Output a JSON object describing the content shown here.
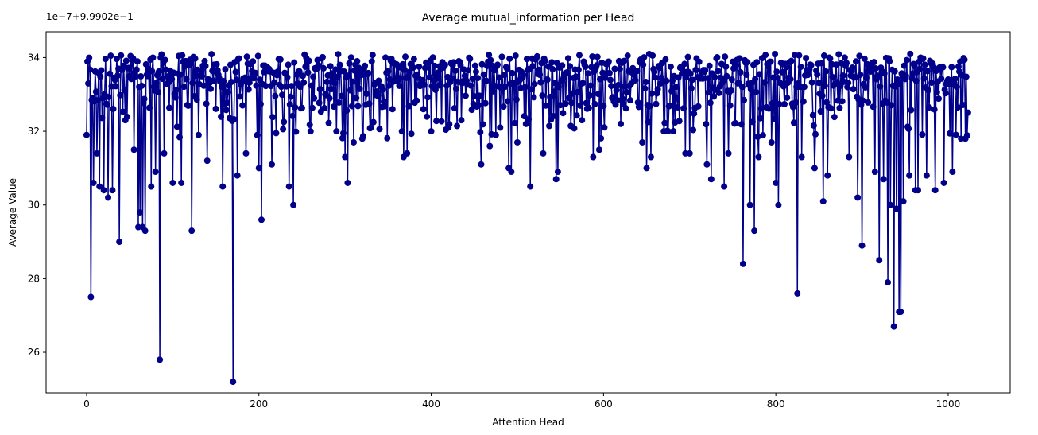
{
  "chart_data": {
    "type": "line",
    "title": "Average mutual_information per Head",
    "xlabel": "Attention Head",
    "ylabel": "Average Value",
    "offset_label": "1e−7+9.9902e−1",
    "xlim": [
      -47,
      1072
    ],
    "ylim": [
      24.9,
      34.7
    ],
    "xticks": [
      0,
      200,
      400,
      600,
      800,
      1000
    ],
    "xtick_labels": [
      "0",
      "200",
      "400",
      "600",
      "800",
      "1000"
    ],
    "yticks": [
      26,
      28,
      30,
      32,
      34
    ],
    "ytick_labels": [
      "26",
      "28",
      "30",
      "32",
      "34"
    ],
    "grid": false,
    "markers": true,
    "series_color": "#00008b",
    "n_points": 1024,
    "baseline": 33.2,
    "upper": 34.1,
    "dips": [
      [
        0,
        31.9
      ],
      [
        2,
        33.3
      ],
      [
        5,
        27.5
      ],
      [
        8,
        30.6
      ],
      [
        12,
        31.4
      ],
      [
        15,
        30.5
      ],
      [
        20,
        30.4
      ],
      [
        25,
        30.2
      ],
      [
        30,
        30.4
      ],
      [
        38,
        29.0
      ],
      [
        45,
        32.3
      ],
      [
        55,
        31.5
      ],
      [
        60,
        29.4
      ],
      [
        62,
        29.8
      ],
      [
        65,
        29.4
      ],
      [
        68,
        29.3
      ],
      [
        75,
        30.5
      ],
      [
        80,
        30.9
      ],
      [
        85,
        25.8
      ],
      [
        90,
        31.4
      ],
      [
        100,
        30.6
      ],
      [
        110,
        30.6
      ],
      [
        122,
        29.3
      ],
      [
        130,
        31.9
      ],
      [
        140,
        31.2
      ],
      [
        158,
        30.5
      ],
      [
        170,
        25.2
      ],
      [
        175,
        30.8
      ],
      [
        185,
        31.4
      ],
      [
        200,
        31.0
      ],
      [
        203,
        29.6
      ],
      [
        215,
        31.1
      ],
      [
        235,
        30.5
      ],
      [
        240,
        30.0
      ],
      [
        260,
        32.0
      ],
      [
        290,
        32.0
      ],
      [
        300,
        31.3
      ],
      [
        303,
        30.6
      ],
      [
        310,
        31.7
      ],
      [
        320,
        31.8
      ],
      [
        330,
        32.1
      ],
      [
        355,
        32.6
      ],
      [
        368,
        31.3
      ],
      [
        372,
        31.4
      ],
      [
        400,
        32.0
      ],
      [
        420,
        32.1
      ],
      [
        435,
        32.3
      ],
      [
        458,
        31.1
      ],
      [
        468,
        31.6
      ],
      [
        475,
        31.9
      ],
      [
        480,
        32.1
      ],
      [
        490,
        31.0
      ],
      [
        493,
        30.9
      ],
      [
        500,
        31.7
      ],
      [
        515,
        30.5
      ],
      [
        530,
        31.4
      ],
      [
        545,
        30.7
      ],
      [
        547,
        30.9
      ],
      [
        560,
        32.9
      ],
      [
        575,
        32.3
      ],
      [
        588,
        31.3
      ],
      [
        595,
        31.5
      ],
      [
        620,
        32.2
      ],
      [
        645,
        31.7
      ],
      [
        650,
        31.0
      ],
      [
        655,
        31.3
      ],
      [
        670,
        32.0
      ],
      [
        675,
        32.0
      ],
      [
        695,
        31.4
      ],
      [
        700,
        31.4
      ],
      [
        720,
        31.1
      ],
      [
        725,
        30.7
      ],
      [
        740,
        30.5
      ],
      [
        745,
        31.4
      ],
      [
        762,
        28.4
      ],
      [
        770,
        30.0
      ],
      [
        775,
        29.3
      ],
      [
        780,
        31.3
      ],
      [
        795,
        31.7
      ],
      [
        800,
        30.6
      ],
      [
        803,
        30.0
      ],
      [
        825,
        27.6
      ],
      [
        830,
        31.3
      ],
      [
        845,
        31.0
      ],
      [
        855,
        30.1
      ],
      [
        860,
        30.8
      ],
      [
        885,
        31.3
      ],
      [
        895,
        30.2
      ],
      [
        900,
        28.9
      ],
      [
        915,
        30.9
      ],
      [
        920,
        28.5
      ],
      [
        925,
        30.7
      ],
      [
        930,
        27.9
      ],
      [
        933,
        30.0
      ],
      [
        937,
        26.7
      ],
      [
        940,
        29.9
      ],
      [
        943,
        27.1
      ],
      [
        945,
        27.1
      ],
      [
        948,
        30.1
      ],
      [
        955,
        30.8
      ],
      [
        962,
        30.4
      ],
      [
        965,
        30.4
      ],
      [
        975,
        30.8
      ],
      [
        985,
        30.4
      ],
      [
        995,
        30.6
      ],
      [
        1005,
        30.9
      ],
      [
        1015,
        31.8
      ],
      [
        1020,
        31.8
      ]
    ]
  }
}
